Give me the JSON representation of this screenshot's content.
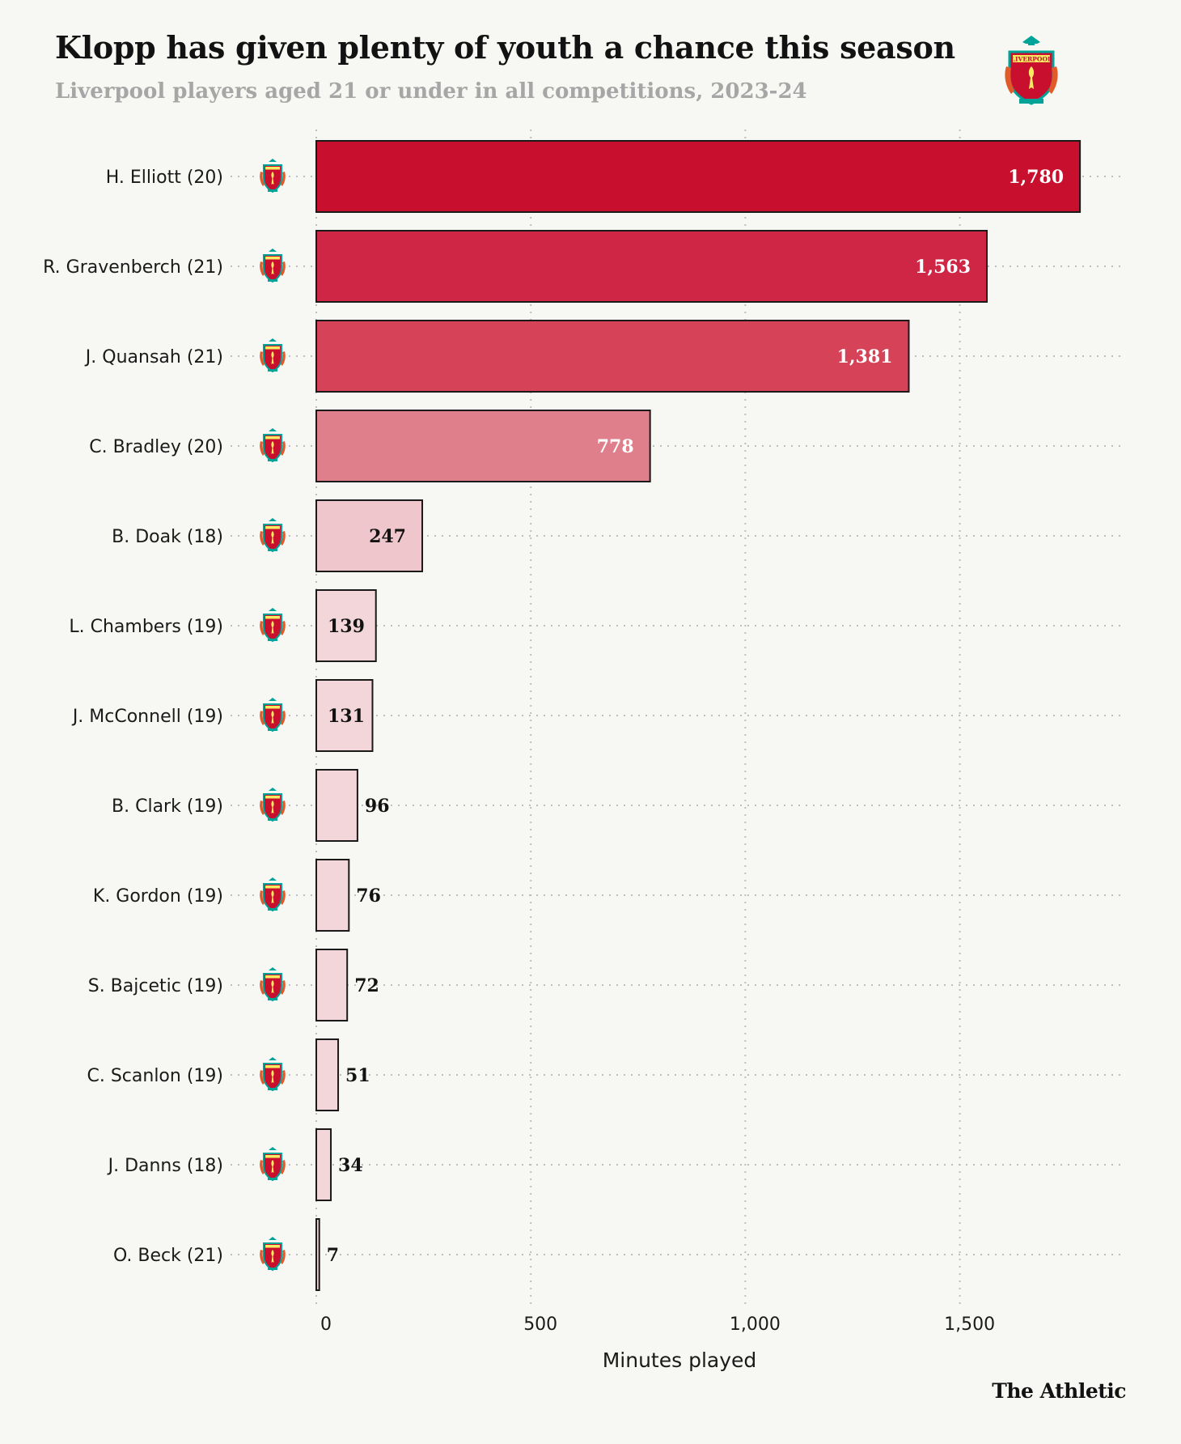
{
  "title": "Klopp has given plenty of youth a chance this season",
  "subtitle": "Liverpool players aged 21 or under in all competitions, 2023-24",
  "brand": "The Athletic",
  "crest": {
    "icon": "liverpool-crest-icon",
    "text": "LIVERPOOL",
    "colors": {
      "red": "#c8102e",
      "green": "#00a398",
      "gold": "#f6eb61"
    }
  },
  "chart_data": {
    "type": "bar",
    "orientation": "horizontal",
    "categories": [
      "H. Elliott (20)",
      "R. Gravenberch (21)",
      "J. Quansah (21)",
      "C. Bradley (20)",
      "B. Doak (18)",
      "L. Chambers (19)",
      "J. McConnell (19)",
      "B. Clark (19)",
      "K. Gordon (19)",
      "S. Bajcetic (19)",
      "C. Scanlon (19)",
      "J. Danns (18)",
      "O. Beck (21)"
    ],
    "values": [
      1780,
      1563,
      1381,
      778,
      247,
      139,
      131,
      96,
      76,
      72,
      51,
      34,
      7
    ],
    "value_labels": [
      "1,780",
      "1,563",
      "1,381",
      "778",
      "247",
      "139",
      "131",
      "96",
      "76",
      "72",
      "51",
      "34",
      "7"
    ],
    "bar_colors": [
      "#c8102e",
      "#cf2645",
      "#d64258",
      "#df7f8b",
      "#efc6cb",
      "#f2d6d9",
      "#f2d6d9",
      "#f2d6d9",
      "#f2d6d9",
      "#f2d6d9",
      "#f2d6d9",
      "#f2d6d9",
      "#f2d6d9"
    ],
    "xlabel": "Minutes played",
    "ylabel": "",
    "xlim": [
      0,
      1880
    ],
    "xticks": [
      0,
      500,
      1000,
      1500
    ],
    "xtick_labels": [
      "0",
      "500",
      "1,000",
      "1,500"
    ],
    "grid": "dotted vertical and horizontal",
    "legend": "none"
  }
}
